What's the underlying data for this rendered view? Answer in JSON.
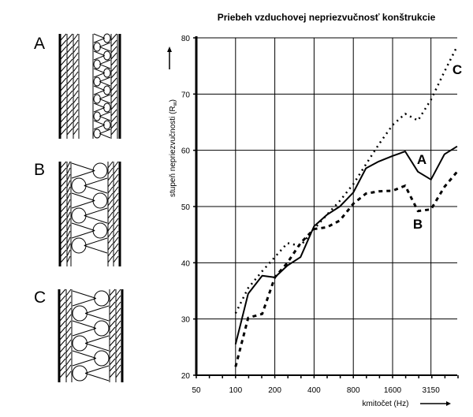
{
  "diagrams": [
    {
      "label": "A"
    },
    {
      "label": "B"
    },
    {
      "label": "C"
    }
  ],
  "chart_data": {
    "type": "line",
    "title": "Priebeh vzduchovej nepriezvučnosť konštrukcie",
    "xlabel": "kmitočet (Hz)",
    "ylabel": "stupeň nepriezvučnosti (R",
    "ylabel_sub": "w",
    "ylabel_end": ")",
    "x_scale": "log",
    "xlim": [
      50,
      5000
    ],
    "ylim": [
      20,
      80
    ],
    "x_ticks": [
      50,
      100,
      200,
      400,
      800,
      1600,
      3150
    ],
    "x_tick_labels": [
      "50",
      "100",
      "200",
      "400",
      "800",
      "1600",
      "3150"
    ],
    "y_ticks": [
      20,
      30,
      40,
      50,
      60,
      70,
      80
    ],
    "y_tick_labels": [
      "20",
      "30",
      "40",
      "50",
      "60",
      "70",
      "80"
    ],
    "grid": true,
    "x": [
      100,
      125,
      160,
      200,
      250,
      315,
      400,
      500,
      630,
      800,
      1000,
      1250,
      1600,
      2000,
      2500,
      3150,
      4000,
      5000
    ],
    "series": [
      {
        "name": "A",
        "style": "solid",
        "values": [
          25.5,
          34.5,
          37.7,
          37.4,
          39.5,
          41,
          46.5,
          48.5,
          50,
          52.5,
          56.8,
          58,
          59,
          59.8,
          56.2,
          54.8,
          59.3,
          60.7
        ]
      },
      {
        "name": "B",
        "style": "dashed",
        "values": [
          21.5,
          30.2,
          30.9,
          37.4,
          40,
          43.5,
          46,
          46.3,
          47.5,
          50.5,
          52.3,
          52.7,
          52.8,
          53.7,
          49.2,
          49.5,
          53.5,
          56.2
        ]
      },
      {
        "name": "C",
        "style": "dotted",
        "values": [
          31,
          35.5,
          38.5,
          41,
          43.5,
          43,
          46,
          48.5,
          51,
          54,
          57.5,
          61,
          64.5,
          66.5,
          65.3,
          69,
          74,
          78.5
        ]
      }
    ]
  }
}
